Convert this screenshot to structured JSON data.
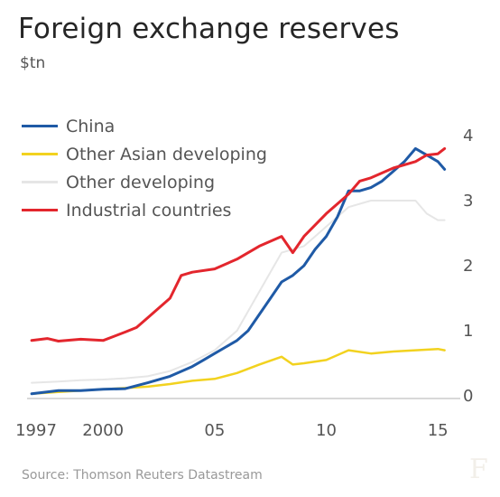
{
  "header": {
    "title": "Foreign exchange reserves",
    "unit": "$tn"
  },
  "source": "Source: Thomson Reuters Datastream",
  "brand": "F",
  "chart_data": {
    "type": "line",
    "title": "Foreign exchange reserves",
    "ylabel": "$tn",
    "xlim": [
      1997,
      2015.6
    ],
    "ylim": [
      0,
      4
    ],
    "xticks": [
      {
        "value": 1997,
        "label": "1997"
      },
      {
        "value": 2000,
        "label": "2000"
      },
      {
        "value": 2005,
        "label": "05"
      },
      {
        "value": 2010,
        "label": "10"
      },
      {
        "value": 2015,
        "label": "15"
      }
    ],
    "yticks": [
      0,
      1,
      2,
      3,
      4
    ],
    "grid": false,
    "legend_position": "top-left",
    "series": [
      {
        "name": "China",
        "color": "#1f5aa6",
        "width": 3,
        "x": [
          1996.8,
          1998,
          1999,
          2000,
          2001,
          2002,
          2003,
          2004,
          2004.5,
          2005,
          2005.5,
          2006,
          2006.5,
          2007,
          2007.5,
          2008,
          2008.5,
          2009,
          2009.5,
          2010,
          2010.5,
          2011,
          2011.5,
          2012,
          2012.5,
          2013,
          2013.5,
          2014,
          2014.5,
          2015,
          2015.3
        ],
        "y": [
          0.03,
          0.08,
          0.08,
          0.1,
          0.11,
          0.2,
          0.3,
          0.45,
          0.55,
          0.65,
          0.75,
          0.85,
          1.0,
          1.25,
          1.5,
          1.75,
          1.85,
          2.0,
          2.25,
          2.45,
          2.75,
          3.15,
          3.15,
          3.2,
          3.3,
          3.45,
          3.6,
          3.8,
          3.7,
          3.6,
          3.48
        ]
      },
      {
        "name": "Other Asian developing",
        "color": "#f2d21f",
        "width": 2.5,
        "x": [
          1996.8,
          1998,
          1999,
          2000,
          2001,
          2002,
          2003,
          2004,
          2005,
          2006,
          2007,
          2008,
          2008.5,
          2009,
          2010,
          2011,
          2012,
          2013,
          2014,
          2015,
          2015.3
        ],
        "y": [
          0.03,
          0.06,
          0.08,
          0.1,
          0.12,
          0.14,
          0.18,
          0.23,
          0.26,
          0.35,
          0.48,
          0.6,
          0.48,
          0.5,
          0.55,
          0.7,
          0.65,
          0.68,
          0.7,
          0.72,
          0.7
        ]
      },
      {
        "name": "Other developing",
        "color": "#e6e6e6",
        "width": 2,
        "x": [
          1996.8,
          1998,
          1999,
          2000,
          2001,
          2002,
          2003,
          2004,
          2005,
          2006,
          2007,
          2008,
          2009,
          2010,
          2011,
          2012,
          2013,
          2014,
          2014.5,
          2015,
          2015.3
        ],
        "y": [
          0.2,
          0.22,
          0.24,
          0.25,
          0.27,
          0.3,
          0.38,
          0.52,
          0.7,
          1.0,
          1.6,
          2.2,
          2.3,
          2.6,
          2.9,
          3.0,
          3.0,
          3.0,
          2.8,
          2.7,
          2.7
        ]
      },
      {
        "name": "Industrial countries",
        "color": "#e3262d",
        "width": 3,
        "x": [
          1996.8,
          1997.5,
          1998,
          1999,
          2000,
          2001,
          2001.5,
          2002,
          2003,
          2003.5,
          2004,
          2005,
          2006,
          2007,
          2008,
          2008.5,
          2009,
          2010,
          2011,
          2011.5,
          2012,
          2013,
          2014,
          2014.5,
          2015,
          2015.3
        ],
        "y": [
          0.85,
          0.88,
          0.84,
          0.87,
          0.85,
          0.98,
          1.05,
          1.2,
          1.5,
          1.85,
          1.9,
          1.95,
          2.1,
          2.3,
          2.45,
          2.2,
          2.45,
          2.8,
          3.1,
          3.3,
          3.35,
          3.5,
          3.6,
          3.7,
          3.72,
          3.8
        ]
      }
    ]
  }
}
